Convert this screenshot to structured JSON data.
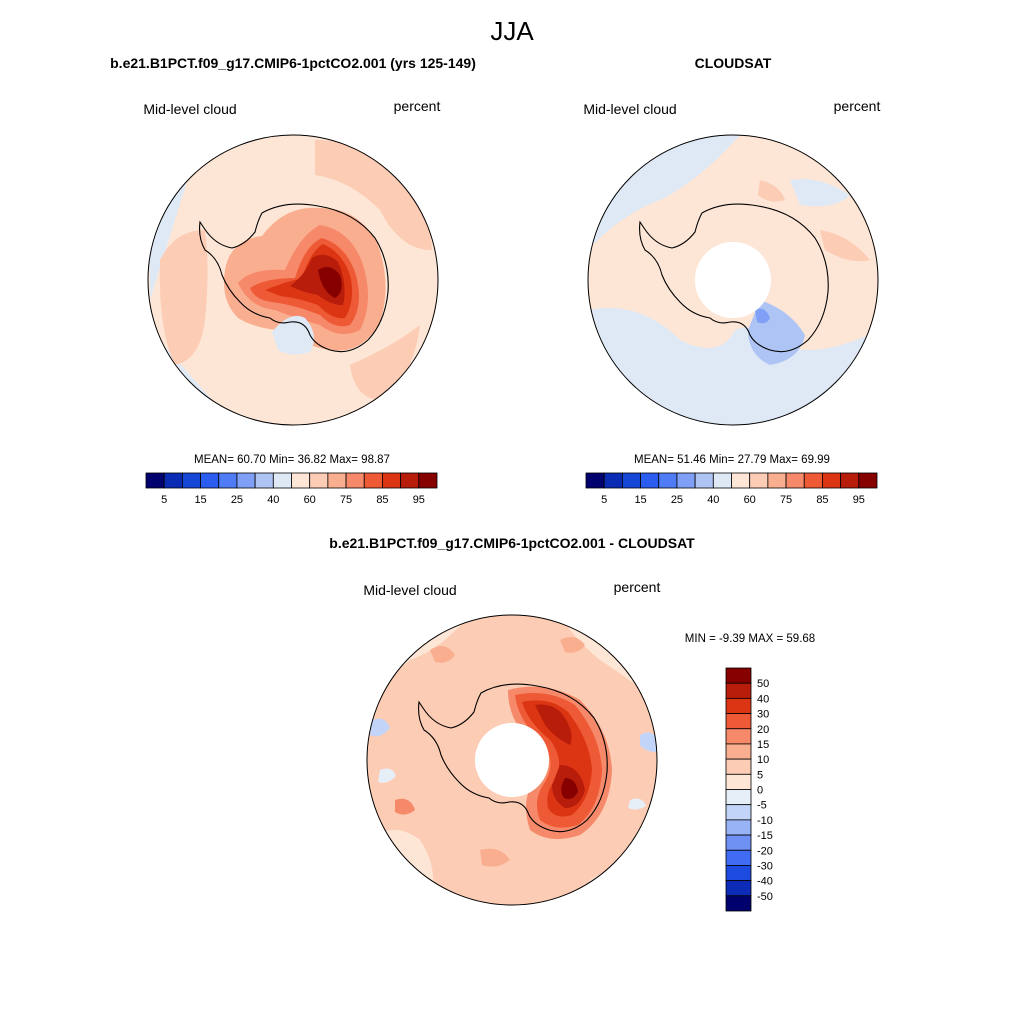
{
  "figure": {
    "season_title": "JJA"
  },
  "panels": {
    "model": {
      "title": "b.e21.B1PCT.f09_g17.CMIP6-1pctCO2.001 (yrs 125-149)",
      "left_label": "Mid-level cloud",
      "right_label": "percent",
      "stats": "MEAN=  60.70  Min=  36.82  Max=  98.87"
    },
    "obs": {
      "title": "CLOUDSAT",
      "left_label": "Mid-level cloud",
      "right_label": "percent",
      "stats": "MEAN=  51.46  Min=  27.79  Max=  69.99"
    },
    "diff": {
      "title": "b.e21.B1PCT.f09_g17.CMIP6-1pctCO2.001 - CLOUDSAT",
      "left_label": "Mid-level cloud",
      "right_label": "percent",
      "stats": "MIN =  -9.39 MAX =  59.68"
    }
  },
  "chart_data": [
    {
      "type": "heatmap",
      "title": "b.e21.B1PCT.f09_g17.CMIP6-1pctCO2.001 (yrs 125-149)",
      "projection": "south polar stereographic",
      "variable": "Mid-level cloud",
      "units": "percent",
      "mean": 60.7,
      "min": 36.82,
      "max": 98.87,
      "colorbar": {
        "orientation": "horizontal",
        "levels": [
          5,
          10,
          15,
          20,
          25,
          30,
          40,
          50,
          60,
          65,
          70,
          75,
          80,
          85,
          90,
          95
        ],
        "tick_labels": [
          "5",
          "15",
          "25",
          "40",
          "60",
          "75",
          "85",
          "95"
        ],
        "colors": [
          "#02026e",
          "#0a2bb4",
          "#1547d6",
          "#2a5cf0",
          "#4f7bf5",
          "#7fa0f6",
          "#adc4f4",
          "#dfe9f6",
          "#fde6d6",
          "#fcccb4",
          "#f9ae8f",
          "#f5896a",
          "#ef5a36",
          "#dc3513",
          "#b81c0a",
          "#870000"
        ]
      }
    },
    {
      "type": "heatmap",
      "title": "CLOUDSAT",
      "projection": "south polar stereographic",
      "variable": "Mid-level cloud",
      "units": "percent",
      "mean": 51.46,
      "min": 27.79,
      "max": 69.99,
      "colorbar": {
        "orientation": "horizontal",
        "levels": [
          5,
          10,
          15,
          20,
          25,
          30,
          40,
          50,
          60,
          65,
          70,
          75,
          80,
          85,
          90,
          95
        ],
        "tick_labels": [
          "5",
          "15",
          "25",
          "40",
          "60",
          "75",
          "85",
          "95"
        ],
        "colors": [
          "#02026e",
          "#0a2bb4",
          "#1547d6",
          "#2a5cf0",
          "#4f7bf5",
          "#7fa0f6",
          "#adc4f4",
          "#dfe9f6",
          "#fde6d6",
          "#fcccb4",
          "#f9ae8f",
          "#f5896a",
          "#ef5a36",
          "#dc3513",
          "#b81c0a",
          "#870000"
        ]
      }
    },
    {
      "type": "heatmap",
      "title": "b.e21.B1PCT.f09_g17.CMIP6-1pctCO2.001 - CLOUDSAT",
      "projection": "south polar stereographic",
      "variable": "Mid-level cloud",
      "units": "percent",
      "min": -9.39,
      "max": 59.68,
      "colorbar": {
        "orientation": "vertical",
        "tick_labels": [
          "50",
          "40",
          "30",
          "20",
          "15",
          "10",
          "5",
          "0",
          "-5",
          "-10",
          "-15",
          "-20",
          "-30",
          "-40",
          "-50"
        ],
        "colors": [
          "#870000",
          "#b81c0a",
          "#dc3513",
          "#ef5a36",
          "#f5896a",
          "#f9ae8f",
          "#fcccb4",
          "#fde6d6",
          "#e6eef8",
          "#c2d4f7",
          "#98b3f6",
          "#6f91f4",
          "#3f6cf2",
          "#1d4be0",
          "#0c2cb8",
          "#02026e"
        ]
      }
    }
  ]
}
